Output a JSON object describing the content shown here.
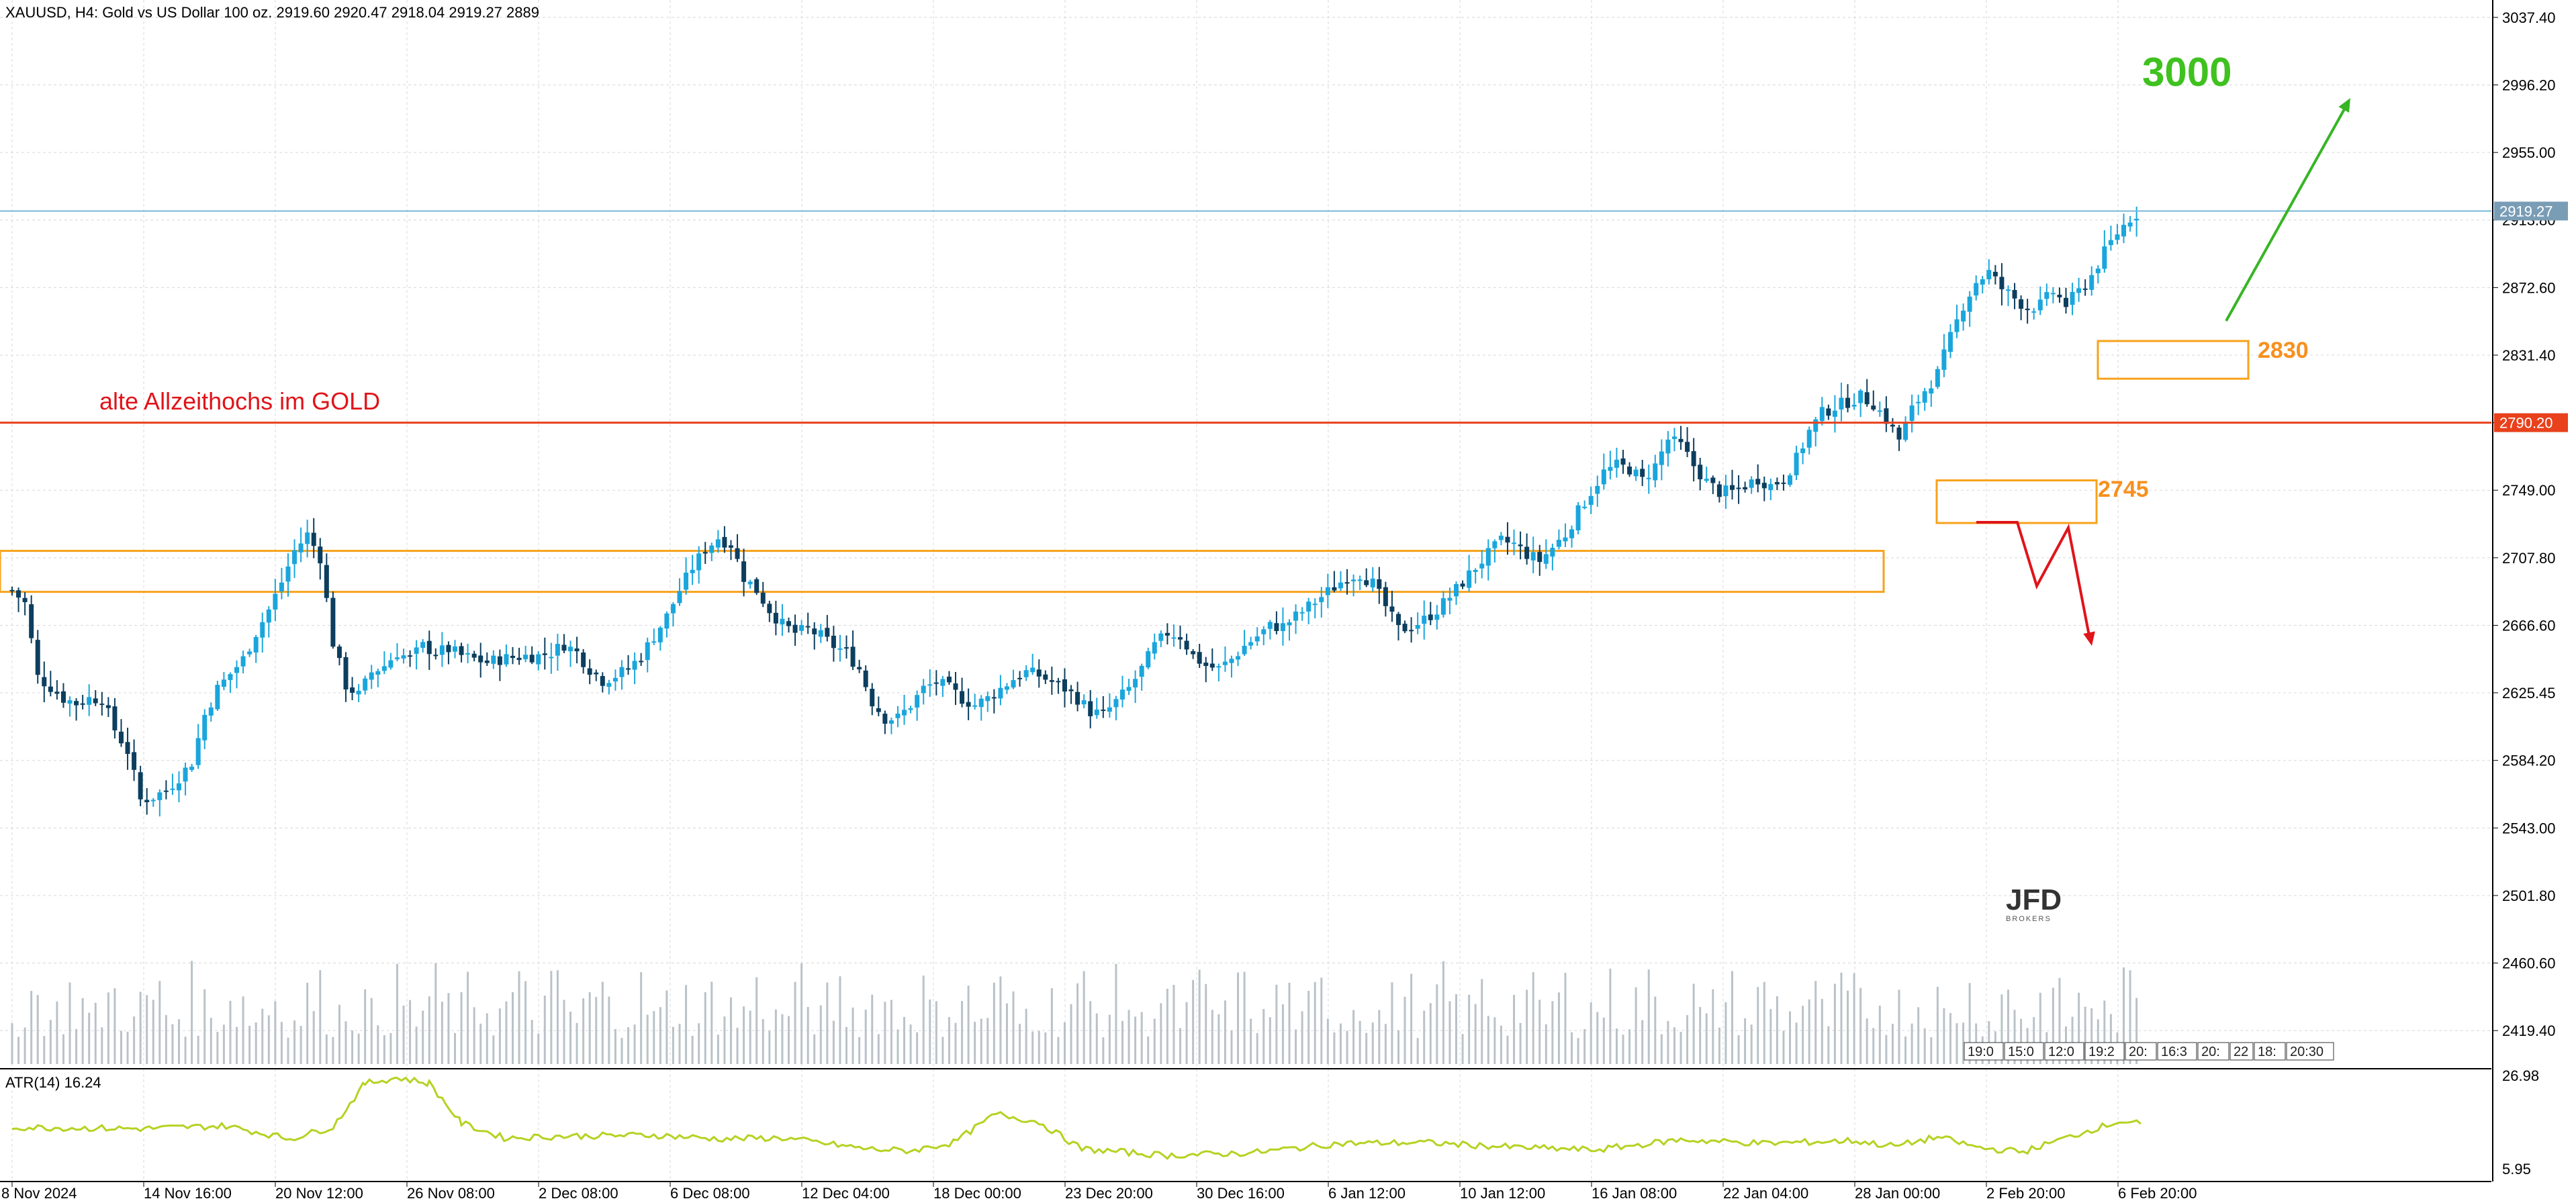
{
  "header": {
    "symbol_line": "XAUUSD, H4:  Gold vs US Dollar 100 oz.  2919.60 2920.47 2918.04 2919.27  2889"
  },
  "colors": {
    "grid": "#d8d8d8",
    "bull_candle": "#1aa6dc",
    "bear_candle": "#0c3e5e",
    "volume": "#b9c2c8",
    "atr_line": "#b5d222",
    "current_price_line": "#7ab8d6",
    "ath_line": "#e8411c",
    "zone_box": "#f7a21b",
    "target_arrow": "#37b525",
    "bear_arrow": "#e0141a",
    "label_orange": "#f7901e"
  },
  "annotations": {
    "ath_label": "alte Allzeithochs im GOLD",
    "target_label": "3000",
    "zone_high_label": "2830",
    "zone_low_label": "2745",
    "logo_text": "JFD",
    "logo_subtext": "BROKERS"
  },
  "price_axis": {
    "ticks": [
      "3037.40",
      "2996.20",
      "2955.00",
      "2913.80",
      "2872.60",
      "2831.40",
      "2790.20",
      "2749.00",
      "2707.80",
      "2666.60",
      "2625.45",
      "2584.20",
      "2543.00",
      "2501.80",
      "2460.60",
      "2419.40"
    ],
    "current_price_label": "2919.27",
    "ath_price_label": "2790.20"
  },
  "atr_panel": {
    "label": "ATR(14) 16.24",
    "ticks": [
      "26.98",
      "5.95"
    ]
  },
  "time_axis": {
    "labels": [
      "8 Nov 2024",
      "14 Nov 16:00",
      "20 Nov 12:00",
      "26 Nov 08:00",
      "2 Dec 08:00",
      "6 Dec 08:00",
      "12 Dec 04:00",
      "18 Dec 00:00",
      "23 Dec 20:00",
      "30 Dec 16:00",
      "6 Jan 12:00",
      "10 Jan 12:00",
      "16 Jan 08:00",
      "22 Jan 04:00",
      "28 Jan 00:00",
      "2 Feb 20:00",
      "6 Feb 20:00"
    ]
  },
  "session_boxes": [
    "19:0",
    "15:0",
    "12:0",
    "19:2",
    "20:",
    "16:3",
    "20:",
    "22",
    "18:",
    "20:30"
  ],
  "chart_data": {
    "type": "candlestick",
    "symbol": "XAUUSD",
    "timeframe": "H4",
    "ylim": [
      2399,
      3048
    ],
    "current_price": 2919.27,
    "horizontal_levels": [
      {
        "label": "alte Allzeithochs im GOLD",
        "value": 2790.2
      },
      {
        "label": "",
        "value": 2919.27
      }
    ],
    "zones": [
      {
        "label": "",
        "low": 2687,
        "high": 2712
      },
      {
        "label": "2830",
        "low": 2817,
        "high": 2840
      },
      {
        "label": "2745",
        "low": 2729,
        "high": 2755
      }
    ],
    "target": "3000",
    "close_path": [
      [
        0,
        2688
      ],
      [
        6,
        2680
      ],
      [
        12,
        2635
      ],
      [
        18,
        2629
      ],
      [
        24,
        2622
      ],
      [
        30,
        2619
      ],
      [
        36,
        2622
      ],
      [
        42,
        2622
      ],
      [
        48,
        2603
      ],
      [
        54,
        2590
      ],
      [
        60,
        2560
      ],
      [
        66,
        2562
      ],
      [
        72,
        2566
      ],
      [
        78,
        2574
      ],
      [
        84,
        2583
      ],
      [
        90,
        2612
      ],
      [
        96,
        2628
      ],
      [
        102,
        2637
      ],
      [
        108,
        2646
      ],
      [
        114,
        2662
      ],
      [
        120,
        2676
      ],
      [
        126,
        2693
      ],
      [
        132,
        2712
      ],
      [
        138,
        2722
      ],
      [
        144,
        2708
      ],
      [
        150,
        2656
      ],
      [
        156,
        2630
      ],
      [
        162,
        2624
      ],
      [
        168,
        2638
      ],
      [
        174,
        2642
      ],
      [
        180,
        2650
      ],
      [
        186,
        2646
      ],
      [
        192,
        2654
      ],
      [
        198,
        2650
      ],
      [
        204,
        2652
      ],
      [
        210,
        2648
      ],
      [
        216,
        2646
      ],
      [
        222,
        2644
      ],
      [
        228,
        2646
      ],
      [
        234,
        2647
      ],
      [
        240,
        2648
      ],
      [
        246,
        2648
      ],
      [
        252,
        2650
      ],
      [
        258,
        2655
      ],
      [
        264,
        2650
      ],
      [
        270,
        2640
      ],
      [
        276,
        2633
      ],
      [
        282,
        2636
      ],
      [
        288,
        2640
      ],
      [
        294,
        2648
      ],
      [
        300,
        2660
      ],
      [
        306,
        2672
      ],
      [
        312,
        2688
      ],
      [
        318,
        2702
      ],
      [
        324,
        2713
      ],
      [
        330,
        2720
      ],
      [
        336,
        2716
      ],
      [
        342,
        2696
      ],
      [
        348,
        2688
      ],
      [
        354,
        2676
      ],
      [
        360,
        2667
      ],
      [
        366,
        2662
      ],
      [
        372,
        2664
      ],
      [
        378,
        2660
      ],
      [
        384,
        2654
      ],
      [
        390,
        2650
      ],
      [
        396,
        2640
      ],
      [
        402,
        2620
      ],
      [
        408,
        2610
      ],
      [
        414,
        2610
      ],
      [
        420,
        2618
      ],
      [
        426,
        2628
      ],
      [
        432,
        2632
      ],
      [
        438,
        2628
      ],
      [
        444,
        2622
      ],
      [
        450,
        2618
      ],
      [
        456,
        2622
      ],
      [
        462,
        2628
      ],
      [
        468,
        2634
      ],
      [
        474,
        2638
      ],
      [
        480,
        2636
      ],
      [
        486,
        2632
      ],
      [
        492,
        2628
      ],
      [
        498,
        2622
      ],
      [
        504,
        2614
      ],
      [
        510,
        2612
      ],
      [
        516,
        2620
      ],
      [
        522,
        2628
      ],
      [
        528,
        2640
      ],
      [
        534,
        2654
      ],
      [
        540,
        2662
      ],
      [
        546,
        2660
      ],
      [
        552,
        2648
      ],
      [
        558,
        2642
      ],
      [
        564,
        2640
      ],
      [
        570,
        2646
      ],
      [
        576,
        2654
      ],
      [
        582,
        2660
      ],
      [
        588,
        2666
      ],
      [
        594,
        2666
      ],
      [
        600,
        2672
      ],
      [
        606,
        2678
      ],
      [
        612,
        2684
      ],
      [
        618,
        2690
      ],
      [
        624,
        2696
      ],
      [
        630,
        2698
      ],
      [
        636,
        2692
      ],
      [
        642,
        2678
      ],
      [
        648,
        2664
      ],
      [
        654,
        2666
      ],
      [
        660,
        2670
      ],
      [
        666,
        2676
      ],
      [
        672,
        2684
      ],
      [
        678,
        2693
      ],
      [
        684,
        2702
      ],
      [
        690,
        2710
      ],
      [
        696,
        2718
      ],
      [
        702,
        2716
      ],
      [
        708,
        2710
      ],
      [
        714,
        2706
      ],
      [
        720,
        2714
      ],
      [
        726,
        2722
      ],
      [
        732,
        2736
      ],
      [
        738,
        2748
      ],
      [
        744,
        2760
      ],
      [
        750,
        2764
      ],
      [
        756,
        2762
      ],
      [
        762,
        2755
      ],
      [
        768,
        2764
      ],
      [
        774,
        2780
      ],
      [
        780,
        2776
      ],
      [
        786,
        2764
      ],
      [
        792,
        2754
      ],
      [
        798,
        2748
      ],
      [
        804,
        2748
      ],
      [
        810,
        2752
      ],
      [
        816,
        2756
      ],
      [
        822,
        2752
      ],
      [
        828,
        2756
      ],
      [
        834,
        2768
      ],
      [
        840,
        2785
      ],
      [
        846,
        2796
      ],
      [
        852,
        2800
      ],
      [
        858,
        2803
      ],
      [
        864,
        2806
      ],
      [
        870,
        2802
      ],
      [
        876,
        2792
      ],
      [
        882,
        2780
      ],
      [
        888,
        2798
      ],
      [
        894,
        2810
      ],
      [
        900,
        2820
      ],
      [
        906,
        2842
      ],
      [
        912,
        2862
      ],
      [
        918,
        2876
      ],
      [
        924,
        2882
      ],
      [
        930,
        2872
      ],
      [
        936,
        2866
      ],
      [
        942,
        2860
      ],
      [
        948,
        2862
      ],
      [
        954,
        2870
      ],
      [
        960,
        2862
      ],
      [
        966,
        2870
      ],
      [
        972,
        2880
      ],
      [
        978,
        2894
      ],
      [
        984,
        2906
      ],
      [
        990,
        2915
      ],
      [
        995,
        2919.27
      ]
    ],
    "volume_panel": {
      "type": "bar",
      "note": "relative tick volume per 4h bar"
    },
    "atr": {
      "label": "ATR(14) 16.24",
      "last": 16.24,
      "ylim": [
        5.95,
        26.98
      ],
      "path": [
        [
          0,
          15.5
        ],
        [
          60,
          15.2
        ],
        [
          100,
          15.8
        ],
        [
          130,
          13.0
        ],
        [
          150,
          15.6
        ],
        [
          165,
          25.0
        ],
        [
          180,
          26.2
        ],
        [
          195,
          25.0
        ],
        [
          210,
          16.4
        ],
        [
          230,
          13.2
        ],
        [
          260,
          13.6
        ],
        [
          300,
          13.8
        ],
        [
          330,
          13.0
        ],
        [
          360,
          13.2
        ],
        [
          400,
          10.8
        ],
        [
          420,
          10.4
        ],
        [
          440,
          12.2
        ],
        [
          460,
          18.4
        ],
        [
          480,
          16.6
        ],
        [
          500,
          10.8
        ],
        [
          540,
          9.4
        ],
        [
          580,
          10.0
        ],
        [
          620,
          12.0
        ],
        [
          660,
          12.2
        ],
        [
          700,
          11.2
        ],
        [
          740,
          10.6
        ],
        [
          780,
          12.8
        ],
        [
          820,
          12.0
        ],
        [
          860,
          12.6
        ],
        [
          880,
          11.4
        ],
        [
          900,
          13.4
        ],
        [
          920,
          11.0
        ],
        [
          940,
          10.2
        ],
        [
          960,
          13.2
        ],
        [
          975,
          15.4
        ],
        [
          985,
          16.8
        ],
        [
          995,
          16.24
        ]
      ]
    }
  }
}
